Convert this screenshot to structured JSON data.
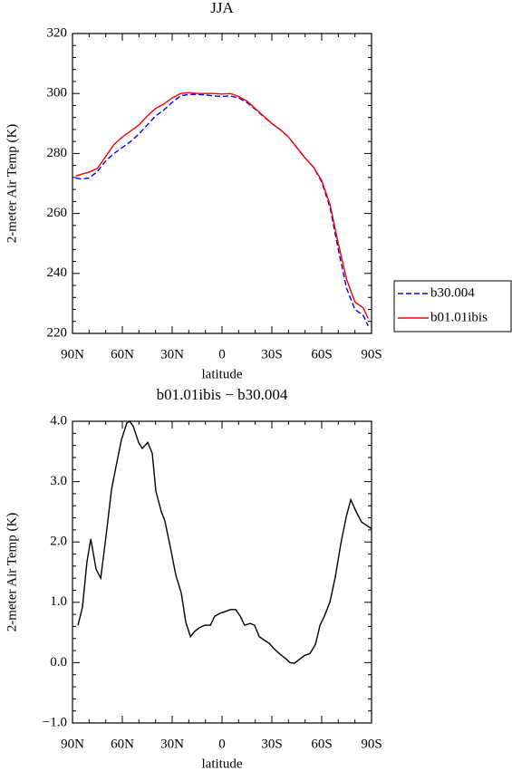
{
  "chart_data": [
    {
      "type": "line",
      "title": "JJA",
      "xlabel": "latitude",
      "ylabel": "2-meter Air Temp (K)",
      "x": [
        88,
        85,
        80,
        75,
        70,
        65,
        60,
        55,
        50,
        45,
        40,
        35,
        30,
        25,
        20,
        15,
        10,
        5,
        0,
        -5,
        -10,
        -15,
        -20,
        -25,
        -30,
        -35,
        -40,
        -45,
        -50,
        -55,
        -60,
        -65,
        -70,
        -75,
        -80,
        -85,
        -88
      ],
      "series": [
        {
          "name": "b30.004",
          "color": "#0000ff",
          "line_style": "dashed",
          "values": [
            271.8,
            271.5,
            271.8,
            274,
            277.5,
            280,
            282,
            284,
            286.5,
            289.5,
            292.5,
            294.5,
            297,
            299.2,
            299.7,
            299.7,
            299.5,
            299.2,
            299,
            299.2,
            298.5,
            297,
            294.8,
            292.3,
            290,
            288,
            285.5,
            282,
            278.5,
            275.5,
            270.5,
            262,
            248,
            235,
            228,
            226,
            222.5
          ]
        },
        {
          "name": "b01.01ibis",
          "color": "#ff0000",
          "line_style": "solid",
          "values": [
            272.5,
            273,
            273.8,
            275,
            279,
            283,
            285.5,
            287.5,
            289.5,
            292.5,
            295,
            296.5,
            298.5,
            300,
            300.3,
            300,
            300,
            300,
            299.8,
            300,
            299,
            297.5,
            295,
            292.5,
            290,
            288,
            285.5,
            282,
            278.5,
            275.5,
            271,
            263,
            250,
            238,
            230.5,
            228.5,
            225
          ]
        }
      ],
      "xlim": [
        90,
        -90
      ],
      "xticks": [
        {
          "value": 90,
          "label": "90N"
        },
        {
          "value": 60,
          "label": "60N"
        },
        {
          "value": 30,
          "label": "30N"
        },
        0,
        {
          "value": -30,
          "label": "30S"
        },
        {
          "value": -60,
          "label": "60S"
        },
        {
          "value": -90,
          "label": "90S"
        }
      ],
      "ylim": [
        220,
        320
      ],
      "yticks": [
        220,
        240,
        260,
        280,
        300,
        320
      ],
      "legend": "right"
    },
    {
      "type": "line",
      "title": "b01.01ibis − b30.004",
      "xlabel": "latitude",
      "ylabel": "2-meter Air Temp (K)",
      "x": [
        86.7,
        84,
        81.3,
        79,
        75.8,
        73,
        69.8,
        66.5,
        63.8,
        60.5,
        57.3,
        55.6,
        53.5,
        50.2,
        48,
        44.7,
        42,
        39.8,
        36.5,
        34.4,
        31,
        27.8,
        24.5,
        21.8,
        19,
        16.4,
        13.6,
        10.4,
        7,
        4.4,
        1,
        -2.2,
        -5,
        -8.2,
        -11,
        -13.6,
        -17,
        -19.6,
        -22.4,
        -25.6,
        -28.4,
        -31.7,
        -34.9,
        -38.2,
        -41,
        -43.6,
        -46.4,
        -49.7,
        -52.9,
        -56.2,
        -59,
        -61.6,
        -64.9,
        -68.2,
        -71.5,
        -74.8,
        -77.5,
        -80.8,
        -84,
        -90
      ],
      "values": [
        0.62,
        0.92,
        1.67,
        2.05,
        1.55,
        1.4,
        2.1,
        2.87,
        3.25,
        3.7,
        3.97,
        4.0,
        3.92,
        3.65,
        3.55,
        3.65,
        3.47,
        2.84,
        2.5,
        2.35,
        1.9,
        1.45,
        1.15,
        0.67,
        0.43,
        0.52,
        0.58,
        0.62,
        0.62,
        0.77,
        0.82,
        0.85,
        0.88,
        0.88,
        0.77,
        0.62,
        0.65,
        0.62,
        0.43,
        0.37,
        0.32,
        0.22,
        0.14,
        0.07,
        0.0,
        -0.01,
        0.05,
        0.12,
        0.15,
        0.3,
        0.62,
        0.77,
        1.0,
        1.42,
        1.97,
        2.42,
        2.7,
        2.5,
        2.33,
        2.22
      ],
      "color": "#000000",
      "xlim": [
        90,
        -90
      ],
      "xticks": [
        {
          "value": 90,
          "label": "90N"
        },
        {
          "value": 60,
          "label": "60N"
        },
        {
          "value": 30,
          "label": "30N"
        },
        0,
        {
          "value": -30,
          "label": "30S"
        },
        {
          "value": -60,
          "label": "60S"
        },
        {
          "value": -90,
          "label": "90S"
        }
      ],
      "ylim": [
        -1,
        4
      ],
      "yticks": [
        {
          "value": -1,
          "label": "−1.0"
        },
        {
          "value": 0,
          "label": "0.0"
        },
        {
          "value": 1,
          "label": "1.0"
        },
        {
          "value": 2,
          "label": "2.0"
        },
        {
          "value": 3,
          "label": "3.0"
        },
        {
          "value": 4,
          "label": "4.0"
        }
      ]
    }
  ]
}
